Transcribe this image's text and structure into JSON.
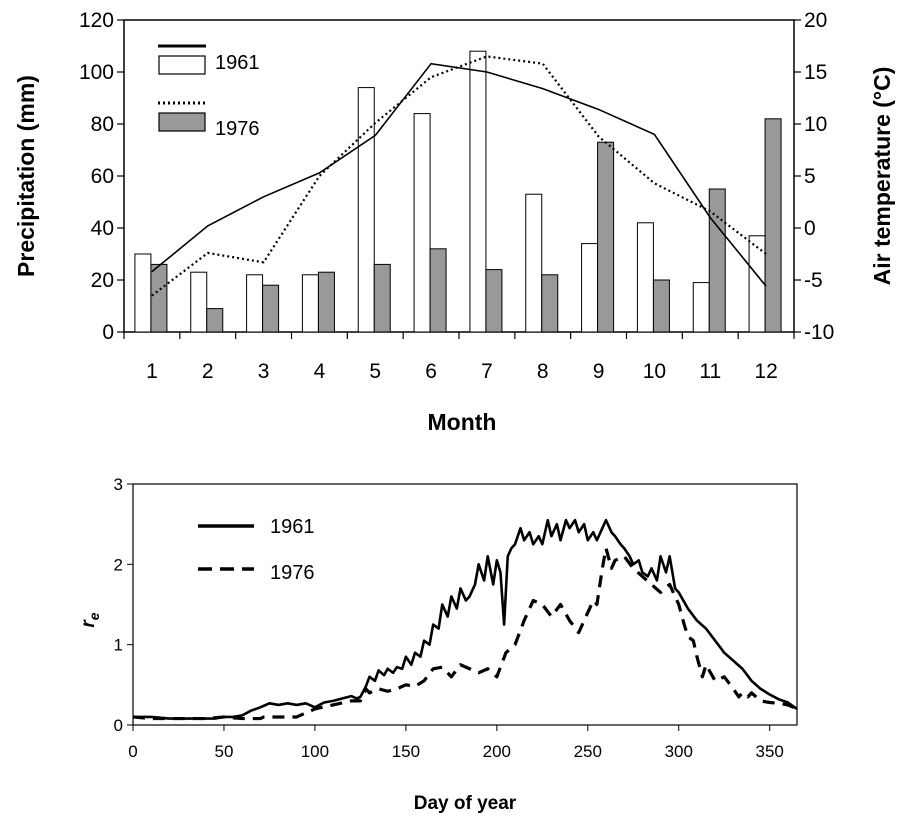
{
  "chart_data": [
    {
      "type": "bar",
      "categories": [
        "1",
        "2",
        "3",
        "4",
        "5",
        "6",
        "7",
        "8",
        "9",
        "10",
        "11",
        "12"
      ],
      "xlabel": "Month",
      "ylabel": "Precipitation (mm)",
      "ylim": [
        0,
        120
      ],
      "y_ticks": [
        0,
        20,
        40,
        60,
        80,
        100,
        120
      ],
      "y2label": "Air temperature (°C)",
      "y2lim": [
        -10,
        20
      ],
      "y2_ticks": [
        -10,
        -5,
        0,
        5,
        10,
        15,
        20
      ],
      "legend_position": "top-left",
      "grid": false,
      "series": [
        {
          "name": "1961",
          "kind": "bar",
          "axis": "left",
          "fill": "#ffffff",
          "values": [
            30,
            23,
            22,
            22,
            94,
            84,
            108,
            53,
            34,
            42,
            19,
            37
          ]
        },
        {
          "name": "1976",
          "kind": "bar",
          "axis": "left",
          "fill": "#999999",
          "values": [
            26,
            9,
            18,
            23,
            26,
            32,
            24,
            22,
            73,
            20,
            55,
            82
          ]
        },
        {
          "name": "1961",
          "kind": "line",
          "axis": "right",
          "style": "solid",
          "values": [
            -4.2,
            0.2,
            3.0,
            5.3,
            8.9,
            15.8,
            15.0,
            13.4,
            11.4,
            9.0,
            1.0,
            -5.6
          ]
        },
        {
          "name": "1976",
          "kind": "line",
          "axis": "right",
          "style": "dotted",
          "values": [
            -6.5,
            -2.4,
            -3.3,
            5.0,
            10.1,
            14.5,
            16.5,
            15.8,
            8.8,
            4.3,
            1.6,
            -2.5
          ]
        }
      ]
    },
    {
      "type": "line",
      "xlabel": "Day of year",
      "ylabel": "r",
      "ylabel_sub": "e",
      "xlim": [
        0,
        365
      ],
      "ylim": [
        0,
        3
      ],
      "x_ticks": [
        0,
        50,
        100,
        150,
        200,
        250,
        300,
        350
      ],
      "y_ticks": [
        0,
        1,
        2,
        3
      ],
      "legend_position": "top-left",
      "grid": false,
      "series": [
        {
          "name": "1961",
          "style": "solid",
          "x": [
            0,
            10,
            20,
            30,
            40,
            45,
            50,
            55,
            60,
            65,
            70,
            75,
            80,
            85,
            90,
            95,
            100,
            105,
            110,
            115,
            120,
            123,
            125,
            128,
            130,
            133,
            135,
            138,
            140,
            143,
            145,
            148,
            150,
            153,
            155,
            158,
            160,
            163,
            165,
            168,
            170,
            173,
            175,
            178,
            180,
            183,
            185,
            188,
            190,
            193,
            195,
            198,
            200,
            202,
            204,
            206,
            208,
            210,
            213,
            215,
            218,
            220,
            223,
            225,
            228,
            230,
            233,
            235,
            238,
            240,
            243,
            245,
            248,
            250,
            253,
            255,
            258,
            260,
            263,
            265,
            268,
            270,
            273,
            275,
            278,
            280,
            283,
            285,
            288,
            290,
            293,
            295,
            298,
            300,
            305,
            310,
            315,
            320,
            325,
            330,
            335,
            340,
            345,
            350,
            355,
            360,
            365
          ],
          "y": [
            0.1,
            0.1,
            0.08,
            0.08,
            0.08,
            0.08,
            0.1,
            0.1,
            0.12,
            0.18,
            0.22,
            0.27,
            0.25,
            0.27,
            0.25,
            0.27,
            0.22,
            0.28,
            0.3,
            0.33,
            0.36,
            0.33,
            0.35,
            0.48,
            0.6,
            0.55,
            0.68,
            0.62,
            0.7,
            0.65,
            0.72,
            0.7,
            0.85,
            0.75,
            0.9,
            0.85,
            1.05,
            1.0,
            1.25,
            1.2,
            1.5,
            1.35,
            1.6,
            1.45,
            1.7,
            1.55,
            1.6,
            1.75,
            2.0,
            1.8,
            2.1,
            1.75,
            2.05,
            1.9,
            1.25,
            2.1,
            2.2,
            2.25,
            2.45,
            2.3,
            2.4,
            2.25,
            2.35,
            2.25,
            2.55,
            2.35,
            2.5,
            2.3,
            2.55,
            2.45,
            2.55,
            2.4,
            2.5,
            2.3,
            2.4,
            2.3,
            2.45,
            2.55,
            2.4,
            2.35,
            2.25,
            2.2,
            2.1,
            2.0,
            2.05,
            1.9,
            1.85,
            1.95,
            1.8,
            2.1,
            1.9,
            2.1,
            1.7,
            1.65,
            1.45,
            1.3,
            1.2,
            1.05,
            0.9,
            0.8,
            0.7,
            0.55,
            0.45,
            0.38,
            0.32,
            0.28,
            0.2
          ]
        },
        {
          "name": "1976",
          "style": "dashed",
          "x": [
            0,
            10,
            20,
            30,
            40,
            50,
            60,
            70,
            72,
            80,
            90,
            95,
            100,
            110,
            120,
            125,
            128,
            130,
            135,
            140,
            145,
            150,
            155,
            160,
            165,
            170,
            175,
            180,
            185,
            190,
            195,
            200,
            205,
            210,
            215,
            220,
            225,
            230,
            235,
            240,
            245,
            250,
            253,
            255,
            258,
            260,
            263,
            265,
            270,
            275,
            280,
            285,
            290,
            295,
            300,
            303,
            305,
            308,
            310,
            313,
            315,
            320,
            325,
            330,
            333,
            335,
            338,
            340,
            345,
            350,
            355,
            360,
            365
          ],
          "y": [
            0.1,
            0.08,
            0.08,
            0.08,
            0.08,
            0.1,
            0.08,
            0.08,
            0.1,
            0.1,
            0.1,
            0.15,
            0.2,
            0.25,
            0.3,
            0.3,
            0.45,
            0.4,
            0.45,
            0.42,
            0.45,
            0.5,
            0.48,
            0.55,
            0.7,
            0.72,
            0.6,
            0.75,
            0.7,
            0.65,
            0.7,
            0.6,
            0.9,
            1.0,
            1.3,
            1.55,
            1.5,
            1.35,
            1.5,
            1.3,
            1.15,
            1.4,
            1.55,
            1.5,
            1.95,
            2.2,
            1.95,
            2.05,
            2.1,
            1.95,
            1.85,
            1.75,
            1.65,
            1.75,
            1.5,
            1.25,
            1.1,
            1.05,
            0.85,
            0.6,
            0.75,
            0.55,
            0.6,
            0.45,
            0.35,
            0.4,
            0.35,
            0.4,
            0.3,
            0.28,
            0.27,
            0.25,
            0.2
          ]
        }
      ]
    }
  ]
}
